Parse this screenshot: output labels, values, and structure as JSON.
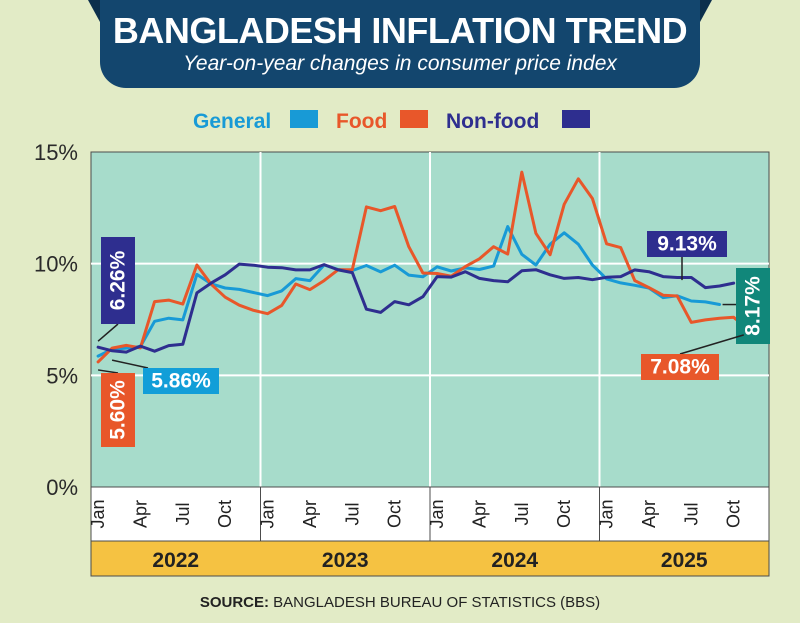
{
  "header": {
    "title": "BANGLADESH INFLATION TREND",
    "subtitle": "Year-on-year changes in consumer price index"
  },
  "source": {
    "label": "SOURCE:",
    "text": "BANGLADESH BUREAU OF STATISTICS (BBS)"
  },
  "colors": {
    "background": "#e2ebc6",
    "plot_background": "#a7dccb",
    "general": "#189ad6",
    "food": "#e8572a",
    "nonfood": "#2e2e8f",
    "callout_general": "#129ed8",
    "callout_latest_general": "#11877a",
    "year_band": "#f5c242",
    "title_banner": "#13466e"
  },
  "chart_data": {
    "type": "line",
    "title": "BANGLADESH INFLATION TREND",
    "subtitle": "Year-on-year changes in consumer price index",
    "ylabel": "",
    "xlabel": "",
    "ylim": [
      0,
      15
    ],
    "yticks": [
      "0%",
      "5%",
      "10%",
      "15%"
    ],
    "ytick_values": [
      0,
      5,
      10,
      15
    ],
    "grid": true,
    "legend_position": "top",
    "x_months": 48,
    "month_tick_labels": [
      "Jan",
      "Apr",
      "Jul",
      "Oct"
    ],
    "years": [
      "2022",
      "2023",
      "2024",
      "2025"
    ],
    "series": [
      {
        "name": "General",
        "color": "#189ad6",
        "values": [
          5.86,
          6.17,
          6.22,
          6.29,
          7.42,
          7.56,
          7.48,
          9.52,
          9.1,
          8.91,
          8.85,
          8.71,
          8.57,
          8.78,
          9.33,
          9.24,
          9.94,
          9.74,
          9.69,
          9.92,
          9.63,
          9.93,
          9.49,
          9.41,
          9.86,
          9.67,
          9.81,
          9.74,
          9.89,
          11.66,
          10.42,
          9.94,
          10.87,
          11.38,
          10.87,
          9.94,
          9.32,
          9.14,
          9.03,
          8.91,
          8.48,
          8.56,
          8.33,
          8.29,
          8.17
        ]
      },
      {
        "name": "Food",
        "color": "#e8572a",
        "values": [
          5.6,
          6.22,
          6.34,
          6.23,
          8.3,
          8.37,
          8.19,
          9.94,
          9.08,
          8.5,
          8.14,
          7.91,
          7.76,
          8.13,
          9.09,
          8.84,
          9.24,
          9.73,
          9.73,
          12.54,
          12.37,
          12.56,
          10.76,
          9.58,
          9.56,
          9.44,
          9.87,
          10.22,
          10.76,
          10.43,
          14.1,
          11.36,
          10.4,
          12.66,
          13.8,
          12.92,
          10.89,
          10.72,
          9.24,
          8.93,
          8.59,
          8.55,
          7.37,
          7.48,
          7.56,
          7.6,
          7.08
        ]
      },
      {
        "name": "Non-food",
        "color": "#2e2e8f",
        "values": [
          6.26,
          6.1,
          6.04,
          6.31,
          6.08,
          6.33,
          6.39,
          8.69,
          9.13,
          9.5,
          9.98,
          9.93,
          9.84,
          9.82,
          9.72,
          9.72,
          9.96,
          9.72,
          9.6,
          7.96,
          7.82,
          8.3,
          8.16,
          8.52,
          9.42,
          9.4,
          9.64,
          9.34,
          9.24,
          9.19,
          9.68,
          9.73,
          9.5,
          9.34,
          9.38,
          9.28,
          9.39,
          9.42,
          9.72,
          9.64,
          9.42,
          9.38,
          9.38,
          8.93,
          9.0,
          9.13
        ]
      }
    ],
    "annotations": [
      {
        "series": "Non-food",
        "text": "6.26%",
        "position": "start"
      },
      {
        "series": "Food",
        "text": "5.60%",
        "position": "start"
      },
      {
        "series": "General",
        "text": "5.86%",
        "position": "start"
      },
      {
        "series": "Non-food",
        "text": "9.13%",
        "position": "end"
      },
      {
        "series": "General",
        "text": "8.17%",
        "position": "end"
      },
      {
        "series": "Food",
        "text": "7.08%",
        "position": "end"
      }
    ]
  }
}
